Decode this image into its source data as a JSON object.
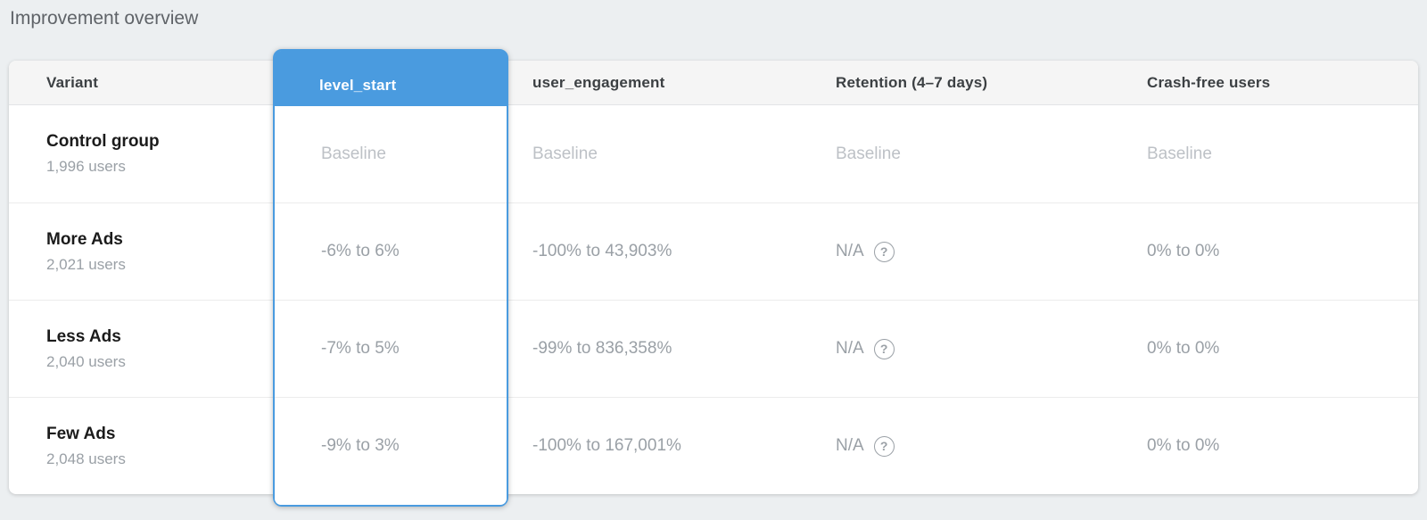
{
  "page": {
    "title": "Improvement overview"
  },
  "colors": {
    "accent_blue": "#4A9BDF",
    "page_background": "#ECEFF1",
    "header_background": "#F5F5F5",
    "value_gray": "#9AA0A6",
    "baseline_gray": "#BDC1C6"
  },
  "icons": {
    "help": "?"
  },
  "table": {
    "columns": [
      {
        "key": "variant",
        "label": "Variant",
        "highlighted": false
      },
      {
        "key": "level_start",
        "label": "level_start",
        "highlighted": true
      },
      {
        "key": "user_engagement",
        "label": "user_engagement",
        "highlighted": false
      },
      {
        "key": "retention",
        "label": "Retention (4–7 days)",
        "highlighted": false
      },
      {
        "key": "crash_free",
        "label": "Crash-free users",
        "highlighted": false
      }
    ],
    "rows": [
      {
        "variant": "Control group",
        "users": "1,996 users",
        "level_start": "Baseline",
        "user_engagement": "Baseline",
        "retention": "Baseline",
        "crash_free": "Baseline",
        "is_baseline": true
      },
      {
        "variant": "More Ads",
        "users": "2,021 users",
        "level_start": "-6% to 6%",
        "user_engagement": "-100% to 43,903%",
        "retention": "N/A",
        "crash_free": "0% to 0%",
        "is_baseline": false
      },
      {
        "variant": "Less Ads",
        "users": "2,040 users",
        "level_start": "-7% to 5%",
        "user_engagement": "-99% to 836,358%",
        "retention": "N/A",
        "crash_free": "0% to 0%",
        "is_baseline": false
      },
      {
        "variant": "Few Ads",
        "users": "2,048 users",
        "level_start": "-9% to 3%",
        "user_engagement": "-100% to 167,001%",
        "retention": "N/A",
        "crash_free": "0% to 0%",
        "is_baseline": false
      }
    ]
  }
}
